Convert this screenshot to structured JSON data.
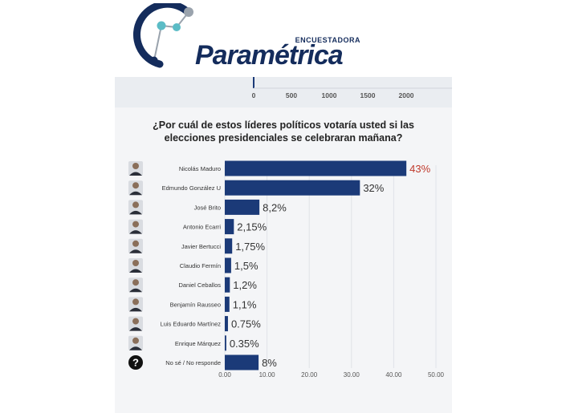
{
  "brand": {
    "name": "Paramétrica",
    "tagline": "ENCUESTADORA",
    "colors": {
      "navy": "#142c5c",
      "teal": "#5bbcc6",
      "gray": "#9aa3ad"
    }
  },
  "top_axis": {
    "tick_labels": [
      "0",
      "500",
      "1000",
      "1500",
      "2000"
    ]
  },
  "chart_data": {
    "type": "bar",
    "orientation": "horizontal",
    "title": "¿Por cuál de estos líderes políticos votaría usted si las elecciones presidenciales se celebraran mañana?",
    "xlim": [
      0,
      50
    ],
    "x_tick_labels": [
      "0.00",
      "10.00",
      "20.00",
      "30.00",
      "40.00",
      "50.00"
    ],
    "grid": true,
    "bar_color": "#1b3a78",
    "highlight_label_color": "#c0392b",
    "categories": [
      "Nicolás Maduro",
      "Edmundo González U",
      "José Brito",
      "Antonio Ecarri",
      "Javier Bertucci",
      "Claudio Fermín",
      "Daniel Ceballos",
      "Benjamín Rausseo",
      "Luis Eduardo Martínez",
      "Enrique Márquez",
      "No sé / No responde"
    ],
    "values": [
      43,
      32,
      8.2,
      2.15,
      1.75,
      1.5,
      1.2,
      1.1,
      0.75,
      0.35,
      8
    ],
    "data_labels": [
      "43%",
      "32%",
      "8,2%",
      "2,15%",
      "1,75%",
      "1,5%",
      "1,2%",
      "1,1%",
      "0.75%",
      "0.35%",
      "8%"
    ],
    "icons": [
      "avatar-photo",
      "avatar-photo",
      "avatar-photo",
      "avatar-photo",
      "avatar-photo",
      "avatar-photo",
      "avatar-photo",
      "avatar-photo",
      "avatar-photo",
      "avatar-photo",
      "question-icon"
    ]
  }
}
